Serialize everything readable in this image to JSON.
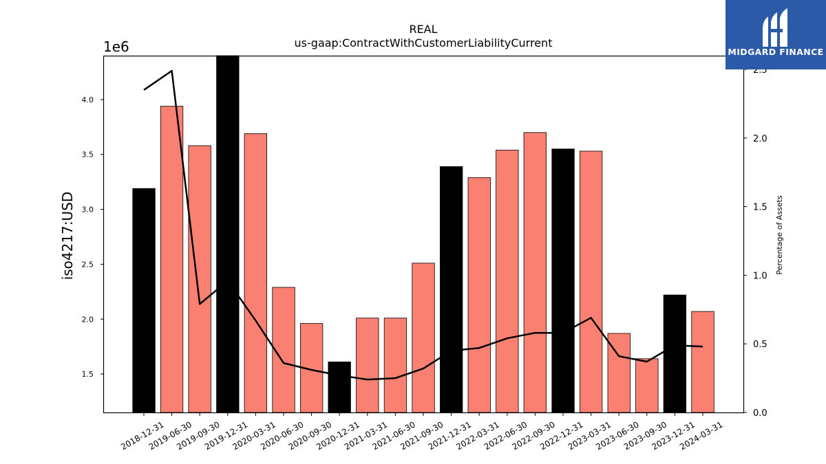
{
  "chart_data": {
    "type": "bar",
    "title": "REAL",
    "subtitle": "us-gaap:ContractWithCustomerLiabilityCurrent",
    "ylabel": "iso4217:USD",
    "y_offset_label": "1e6",
    "y2label": "Percentage of Assets",
    "ylim": [
      1.15,
      4.4
    ],
    "y2lim": [
      0.0,
      2.6
    ],
    "yticks": [
      "1.5",
      "2.0",
      "2.5",
      "3.0",
      "3.5",
      "4.0"
    ],
    "y2ticks": [
      "0.0",
      "0.5",
      "1.0",
      "1.5",
      "2.0",
      "2.5"
    ],
    "grid": false,
    "categories": [
      "2018-12-31",
      "2019-06-30",
      "2019-09-30",
      "2019-12-31",
      "2020-03-31",
      "2020-06-30",
      "2020-09-30",
      "2020-12-31",
      "2021-03-31",
      "2021-06-30",
      "2021-09-30",
      "2021-12-31",
      "2022-03-31",
      "2022-06-30",
      "2022-09-30",
      "2022-12-31",
      "2023-03-31",
      "2023-06-30",
      "2023-09-30",
      "2023-12-31",
      "2024-03-31"
    ],
    "series": [
      {
        "type": "bar",
        "values": [
          3.19,
          3.94,
          3.58,
          4.4,
          3.69,
          2.29,
          1.96,
          1.61,
          2.01,
          2.01,
          2.51,
          3.39,
          3.29,
          3.54,
          3.7,
          3.55,
          3.53,
          1.87,
          1.64,
          2.22,
          2.07
        ],
        "bar_colors": [
          "#000000",
          "#fa8072",
          "#fa8072",
          "#000000",
          "#fa8072",
          "#fa8072",
          "#fa8072",
          "#000000",
          "#fa8072",
          "#fa8072",
          "#fa8072",
          "#000000",
          "#fa8072",
          "#fa8072",
          "#fa8072",
          "#000000",
          "#fa8072",
          "#fa8072",
          "#fa8072",
          "#000000",
          "#fa8072"
        ]
      },
      {
        "type": "line",
        "axis": "right",
        "color": "#000000",
        "values": [
          2.35,
          2.49,
          0.79,
          0.96,
          0.67,
          0.36,
          0.31,
          0.27,
          0.24,
          0.25,
          0.32,
          0.45,
          0.47,
          0.54,
          0.58,
          0.58,
          0.69,
          0.41,
          0.37,
          0.49,
          0.48
        ]
      }
    ]
  },
  "logo": {
    "text": "MIDGARD FINANCE",
    "icon": "midgard-logo-icon"
  }
}
